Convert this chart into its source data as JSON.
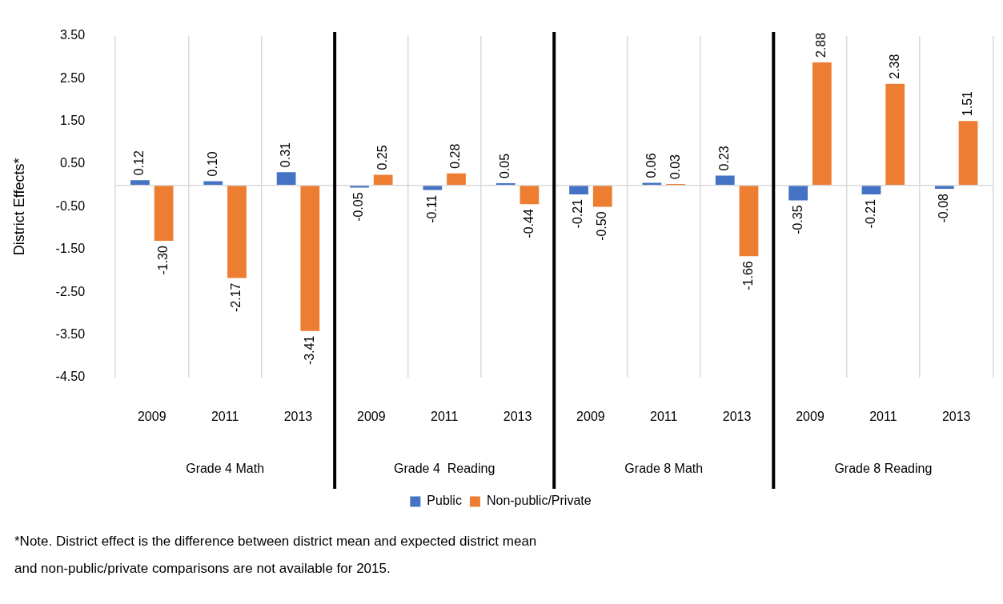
{
  "chart_data": {
    "type": "bar",
    "ylabel": "District Effects*",
    "categories": [
      "2009",
      "2011",
      "2013",
      "2009",
      "2011",
      "2013",
      "2009",
      "2011",
      "2013",
      "2009",
      "2011",
      "2013"
    ],
    "series": [
      {
        "name": "Public",
        "color": "#4472c4",
        "values": [
          0.12,
          0.1,
          0.31,
          -0.05,
          -0.11,
          0.05,
          -0.21,
          0.06,
          0.23,
          -0.35,
          -0.21,
          -0.08
        ],
        "value_labels": [
          "0.12",
          "0.10",
          "0.31",
          "-0.05",
          "-0.11",
          "0.05",
          "-0.21",
          "0.06",
          "0.23",
          "-0.35",
          "-0.21",
          "-0.08"
        ]
      },
      {
        "name": "Non-public/Private",
        "color": "#ed7d31",
        "values": [
          -1.3,
          -2.17,
          -3.41,
          0.25,
          0.28,
          -0.44,
          -0.5,
          0.03,
          -1.66,
          2.88,
          2.38,
          1.51
        ],
        "value_labels": [
          "-1.30",
          "-2.17",
          "-3.41",
          "0.25",
          "0.28",
          "-0.44",
          "-0.50",
          "0.03",
          "-1.66",
          "2.88",
          "2.38",
          "1.51"
        ]
      }
    ],
    "ylim": [
      -4.5,
      3.5
    ],
    "yticks": [
      {
        "value": -4.5,
        "label": "-4.50"
      },
      {
        "value": -3.5,
        "label": "-3.50"
      },
      {
        "value": -2.5,
        "label": "-2.50"
      },
      {
        "value": -1.5,
        "label": "-1.50"
      },
      {
        "value": -0.5,
        "label": "-0.50"
      },
      {
        "value": 0.5,
        "label": "0.50"
      },
      {
        "value": 1.5,
        "label": "1.50"
      },
      {
        "value": 2.5,
        "label": "2.50"
      },
      {
        "value": 3.5,
        "label": "3.50"
      }
    ],
    "grid": "x",
    "legend": "bottom",
    "ref_lines": [
      {
        "axis": "y",
        "value": 0,
        "color": "#d9d9d9"
      }
    ],
    "annotations": [
      "Grade 4 Math",
      "Grade 4  Reading",
      "Grade 8 Math",
      "Grade 8 Reading",
      "*Note. District effect is the difference between district mean and expected district mean\nand non-public/private comparisons are not available for 2015."
    ]
  }
}
